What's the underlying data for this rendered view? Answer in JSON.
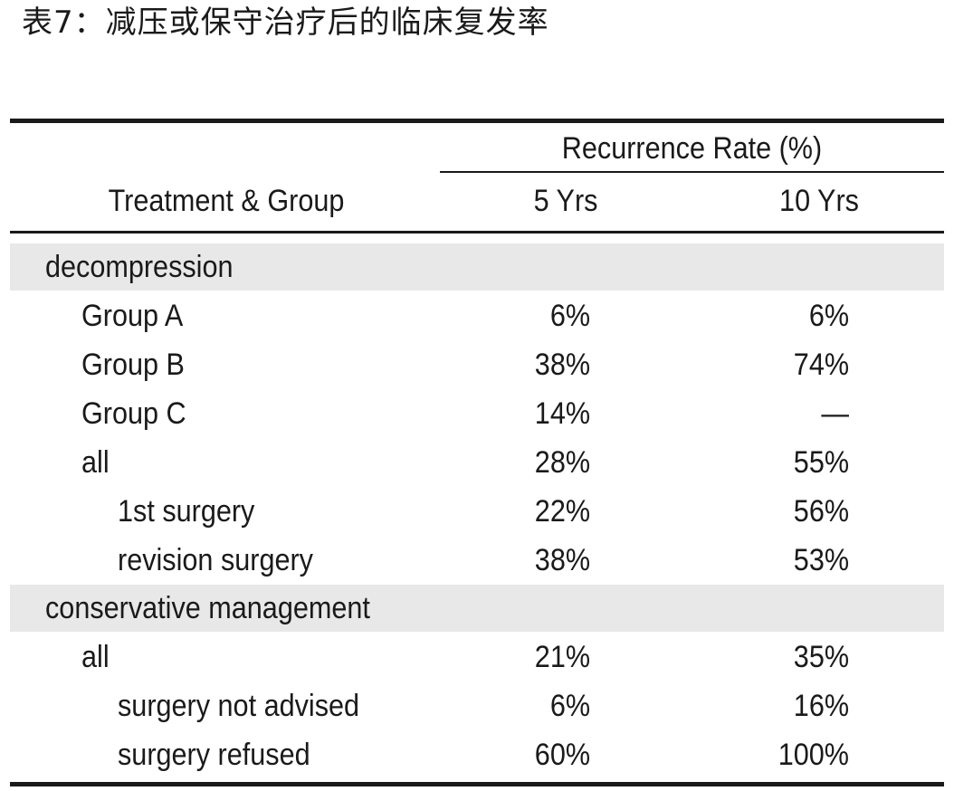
{
  "title": "表7：减压或保守治疗后的临床复发率",
  "header": {
    "group_col": "Treatment & Group",
    "span_label": "Recurrence Rate (%)",
    "col_5": "5 Yrs",
    "col_10": "10 Yrs"
  },
  "sections": [
    {
      "label": "decompression",
      "rows": [
        {
          "label": "Group A",
          "y5": "6%",
          "y10": "6%"
        },
        {
          "label": "Group B",
          "y5": "38%",
          "y10": "74%"
        },
        {
          "label": "Group C",
          "y5": "14%",
          "y10": "—"
        },
        {
          "label": "all",
          "y5": "28%",
          "y10": "55%"
        },
        {
          "label": "1st surgery",
          "y5": "22%",
          "y10": "56%"
        },
        {
          "label": "revision surgery",
          "y5": "38%",
          "y10": "53%"
        }
      ]
    },
    {
      "label": "conservative management",
      "rows": [
        {
          "label": "all",
          "y5": "21%",
          "y10": "35%"
        },
        {
          "label": "surgery not advised",
          "y5": "6%",
          "y10": "16%"
        },
        {
          "label": "surgery refused",
          "y5": "60%",
          "y10": "100%"
        }
      ]
    }
  ]
}
